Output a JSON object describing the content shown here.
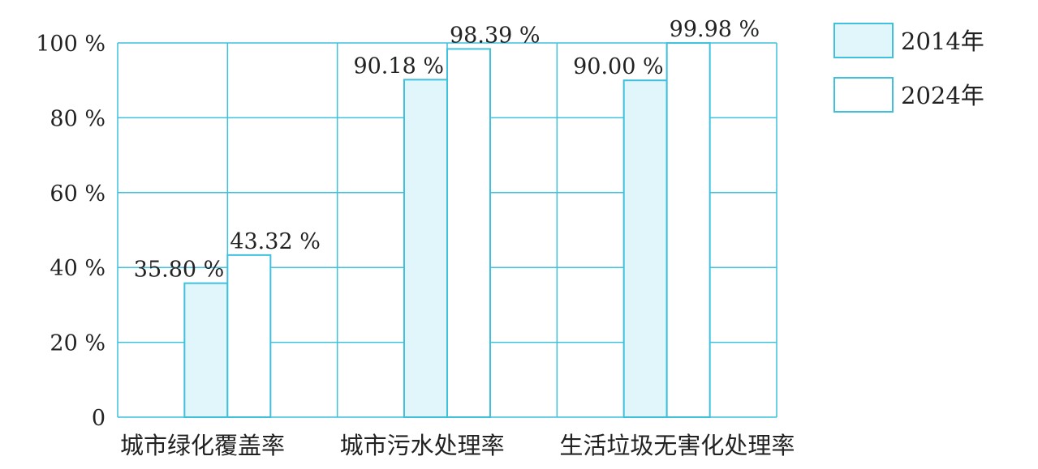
{
  "chart_data": {
    "type": "bar",
    "title": "",
    "xlabel": "",
    "ylabel": "",
    "ylim": [
      0,
      100
    ],
    "yticks": [
      {
        "value": 0,
        "label": "0"
      },
      {
        "value": 20,
        "label": "20 %"
      },
      {
        "value": 40,
        "label": "40 %"
      },
      {
        "value": 60,
        "label": "60 %"
      },
      {
        "value": 80,
        "label": "80 %"
      },
      {
        "value": 100,
        "label": "100 %"
      }
    ],
    "grid": true,
    "legend_position": "top-right",
    "categories": [
      "城市绿化覆盖率",
      "城市污水处理率",
      "生活垃圾无害化处理率"
    ],
    "series": [
      {
        "name": "2014年",
        "values": [
          35.8,
          90.18,
          90.0
        ],
        "labels": [
          "35.80 %",
          "90.18 %",
          "90.00 %"
        ],
        "color": "#e0f6fb"
      },
      {
        "name": "2024年",
        "values": [
          43.32,
          98.39,
          99.98
        ],
        "labels": [
          "43.32 %",
          "98.39 %",
          "99.98 %"
        ],
        "color": "#ffffff"
      }
    ],
    "stroke_color": "#3fc1dd"
  }
}
